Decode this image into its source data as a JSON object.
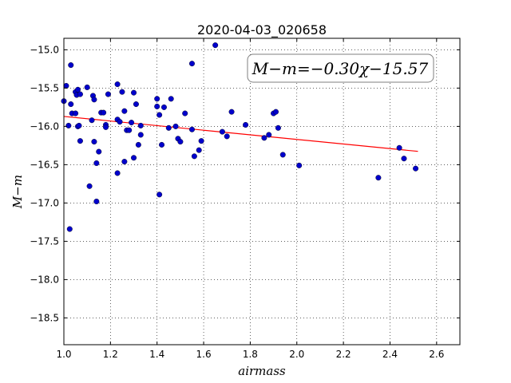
{
  "chart_data": {
    "type": "scatter",
    "title": "2020-04-03_020658",
    "xlabel": "airmass",
    "ylabel": "M−m",
    "xlim": [
      1.0,
      2.7
    ],
    "ylim": [
      -18.85,
      -14.85
    ],
    "xticks": [
      1.0,
      1.2,
      1.4,
      1.6,
      1.8,
      2.0,
      2.2,
      2.4,
      2.6
    ],
    "xtick_labels": [
      "1.0",
      "1.2",
      "1.4",
      "1.6",
      "1.8",
      "2.0",
      "2.2",
      "2.4",
      "2.6"
    ],
    "yticks": [
      -15.0,
      -15.5,
      -16.0,
      -16.5,
      -17.0,
      -17.5,
      -18.0,
      -18.5
    ],
    "ytick_labels": [
      "−15.0",
      "−15.5",
      "−16.0",
      "−16.5",
      "−17.0",
      "−17.5",
      "−18.0",
      "−18.5"
    ],
    "grid": true,
    "annotation": "M−m=−0.30χ−15.57",
    "colors": {
      "points": "#0000cc",
      "fit": "#ff0000"
    },
    "fit": {
      "x": [
        1.0,
        2.52
      ],
      "y": [
        -15.87,
        -16.326
      ]
    },
    "points": [
      {
        "x": 1.0,
        "y": -15.67
      },
      {
        "x": 1.01,
        "y": -15.47
      },
      {
        "x": 1.02,
        "y": -15.99
      },
      {
        "x": 1.025,
        "y": -17.34
      },
      {
        "x": 1.03,
        "y": -15.2
      },
      {
        "x": 1.03,
        "y": -15.71
      },
      {
        "x": 1.035,
        "y": -15.83
      },
      {
        "x": 1.05,
        "y": -15.83
      },
      {
        "x": 1.05,
        "y": -15.55
      },
      {
        "x": 1.055,
        "y": -15.59
      },
      {
        "x": 1.06,
        "y": -15.52
      },
      {
        "x": 1.06,
        "y": -16.0
      },
      {
        "x": 1.065,
        "y": -15.99
      },
      {
        "x": 1.07,
        "y": -15.58
      },
      {
        "x": 1.07,
        "y": -16.19
      },
      {
        "x": 1.1,
        "y": -15.49
      },
      {
        "x": 1.11,
        "y": -16.78
      },
      {
        "x": 1.12,
        "y": -15.92
      },
      {
        "x": 1.125,
        "y": -15.6
      },
      {
        "x": 1.13,
        "y": -15.65
      },
      {
        "x": 1.13,
        "y": -16.2
      },
      {
        "x": 1.14,
        "y": -16.48
      },
      {
        "x": 1.14,
        "y": -16.98
      },
      {
        "x": 1.15,
        "y": -16.33
      },
      {
        "x": 1.16,
        "y": -15.82
      },
      {
        "x": 1.17,
        "y": -15.82
      },
      {
        "x": 1.18,
        "y": -15.98
      },
      {
        "x": 1.18,
        "y": -16.01
      },
      {
        "x": 1.19,
        "y": -15.58
      },
      {
        "x": 1.23,
        "y": -15.45
      },
      {
        "x": 1.23,
        "y": -15.91
      },
      {
        "x": 1.23,
        "y": -16.61
      },
      {
        "x": 1.24,
        "y": -15.94
      },
      {
        "x": 1.25,
        "y": -15.55
      },
      {
        "x": 1.26,
        "y": -15.8
      },
      {
        "x": 1.26,
        "y": -16.46
      },
      {
        "x": 1.27,
        "y": -16.05
      },
      {
        "x": 1.28,
        "y": -16.05
      },
      {
        "x": 1.29,
        "y": -15.95
      },
      {
        "x": 1.3,
        "y": -16.41
      },
      {
        "x": 1.3,
        "y": -15.56
      },
      {
        "x": 1.31,
        "y": -15.71
      },
      {
        "x": 1.32,
        "y": -16.24
      },
      {
        "x": 1.33,
        "y": -16.11
      },
      {
        "x": 1.33,
        "y": -15.99
      },
      {
        "x": 1.4,
        "y": -15.74
      },
      {
        "x": 1.4,
        "y": -15.64
      },
      {
        "x": 1.41,
        "y": -15.85
      },
      {
        "x": 1.41,
        "y": -16.89
      },
      {
        "x": 1.42,
        "y": -16.24
      },
      {
        "x": 1.43,
        "y": -15.75
      },
      {
        "x": 1.45,
        "y": -16.02
      },
      {
        "x": 1.46,
        "y": -15.64
      },
      {
        "x": 1.48,
        "y": -16.0
      },
      {
        "x": 1.49,
        "y": -16.16
      },
      {
        "x": 1.5,
        "y": -16.2
      },
      {
        "x": 1.52,
        "y": -15.83
      },
      {
        "x": 1.55,
        "y": -15.18
      },
      {
        "x": 1.55,
        "y": -16.04
      },
      {
        "x": 1.56,
        "y": -16.39
      },
      {
        "x": 1.58,
        "y": -16.31
      },
      {
        "x": 1.59,
        "y": -16.19
      },
      {
        "x": 1.65,
        "y": -14.94
      },
      {
        "x": 1.68,
        "y": -16.07
      },
      {
        "x": 1.7,
        "y": -16.13
      },
      {
        "x": 1.72,
        "y": -15.81
      },
      {
        "x": 1.78,
        "y": -15.98
      },
      {
        "x": 1.86,
        "y": -16.15
      },
      {
        "x": 1.88,
        "y": -16.11
      },
      {
        "x": 1.9,
        "y": -15.83
      },
      {
        "x": 1.91,
        "y": -15.81
      },
      {
        "x": 1.92,
        "y": -16.02
      },
      {
        "x": 1.94,
        "y": -16.37
      },
      {
        "x": 2.01,
        "y": -16.51
      },
      {
        "x": 2.35,
        "y": -16.67
      },
      {
        "x": 2.44,
        "y": -16.28
      },
      {
        "x": 2.46,
        "y": -16.42
      },
      {
        "x": 2.51,
        "y": -16.55
      }
    ]
  }
}
